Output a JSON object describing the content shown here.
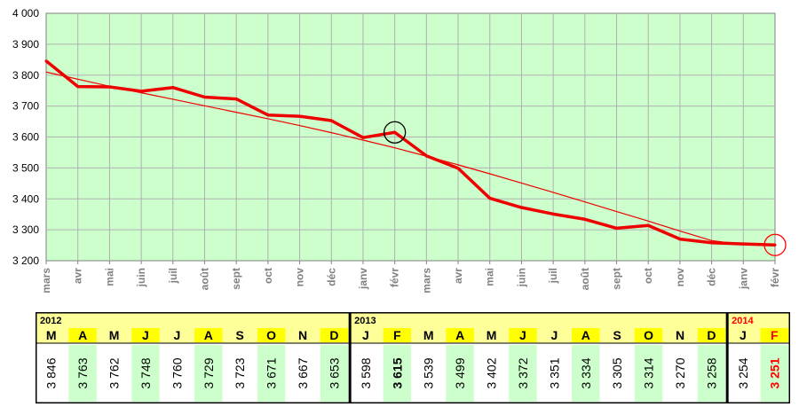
{
  "chart_data": {
    "type": "line",
    "title": "",
    "xlabel": "",
    "ylabel": "",
    "ylim": [
      3200,
      4000
    ],
    "yticks": [
      "3 200",
      "3 300",
      "3 400",
      "3 500",
      "3 600",
      "3 700",
      "3 800",
      "3 900",
      "4 000"
    ],
    "x": [
      "mars",
      "avr",
      "mai",
      "juin",
      "juil",
      "août",
      "sept",
      "oct",
      "nov",
      "déc",
      "janv",
      "févr",
      "mars",
      "avr",
      "mai",
      "juin",
      "juil",
      "août",
      "sept",
      "oct",
      "nov",
      "déc",
      "janv",
      "févr"
    ],
    "series": [
      {
        "values": [
          3846,
          3763,
          3762,
          3748,
          3760,
          3729,
          3723,
          3671,
          3667,
          3653,
          3598,
          3615,
          3539,
          3499,
          3402,
          3372,
          3351,
          3334,
          3305,
          3314,
          3270,
          3258,
          3254,
          3251
        ]
      }
    ],
    "trendline": [
      3810,
      3787,
      3764,
      3743,
      3722,
      3701,
      3680,
      3659,
      3637,
      3614,
      3590,
      3565,
      3538,
      3510,
      3481,
      3451,
      3421,
      3390,
      3359,
      3328,
      3296,
      3265,
      3252,
      3251
    ],
    "highlights": [
      {
        "index": 11,
        "marker": "black-circle"
      },
      {
        "index": 23,
        "marker": "red-circle"
      }
    ],
    "grid": true,
    "colors": {
      "plot_bg": "#ccffcc",
      "line": "#ee0000",
      "trend": "#ee0000",
      "grid": "#b0b0b0"
    }
  },
  "table": {
    "years": [
      {
        "label": "2012",
        "start": 0,
        "span": 10,
        "color": "#000000"
      },
      {
        "label": "2013",
        "start": 10,
        "span": 12,
        "color": "#000000"
      },
      {
        "label": "2014",
        "start": 22,
        "span": 2,
        "color": "#ff0000"
      }
    ],
    "months": [
      "M",
      "A",
      "M",
      "J",
      "J",
      "A",
      "S",
      "O",
      "N",
      "D",
      "J",
      "F",
      "M",
      "A",
      "M",
      "J",
      "J",
      "A",
      "S",
      "O",
      "N",
      "D",
      "J",
      "F"
    ],
    "values": [
      "3 846",
      "3 763",
      "3 762",
      "3 748",
      "3 760",
      "3 729",
      "3 723",
      "3 671",
      "3 667",
      "3 653",
      "3 598",
      "3 615",
      "3 539",
      "3 499",
      "3 402",
      "3 372",
      "3 351",
      "3 334",
      "3 305",
      "3 314",
      "3 270",
      "3 258",
      "3 254",
      "3 251"
    ],
    "shaded": [
      1,
      3,
      5,
      7,
      9,
      11,
      13,
      15,
      17,
      19,
      21,
      23
    ],
    "bold": [
      11,
      23
    ],
    "red": [
      23
    ],
    "colors": {
      "header_bg": "#ffff99",
      "month_highlight": "#ffff00",
      "value_shade": "#ccffcc",
      "last_text": "#ff0000"
    }
  }
}
